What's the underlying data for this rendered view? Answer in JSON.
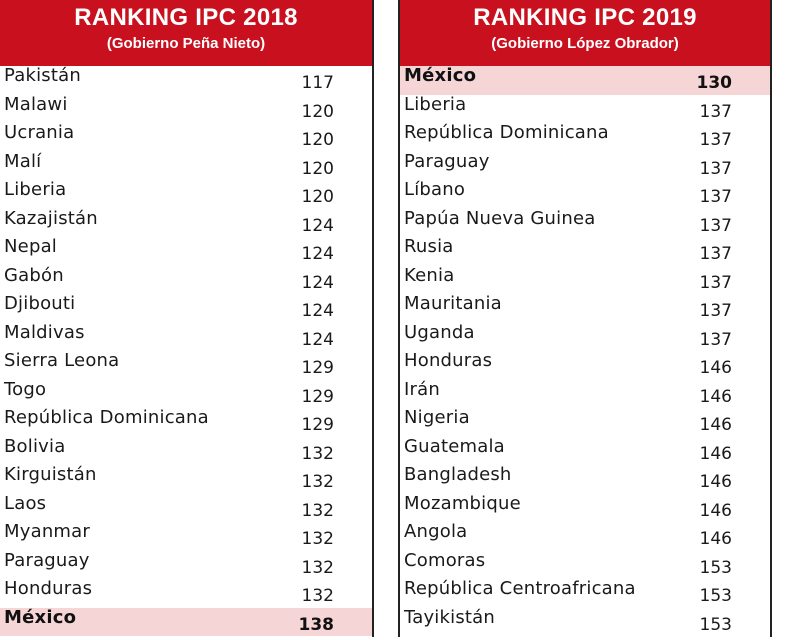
{
  "left": {
    "title": "RANKING IPC 2018",
    "subtitle": "(Gobierno Peña Nieto)",
    "rows": [
      {
        "country": "Pakistán",
        "rank": "117"
      },
      {
        "country": "Malawi",
        "rank": "120"
      },
      {
        "country": "Ucrania",
        "rank": "120"
      },
      {
        "country": "Malí",
        "rank": "120"
      },
      {
        "country": "Liberia",
        "rank": "120"
      },
      {
        "country": "Kazajistán",
        "rank": "124"
      },
      {
        "country": "Nepal",
        "rank": "124"
      },
      {
        "country": "Gabón",
        "rank": "124"
      },
      {
        "country": "Djibouti",
        "rank": "124"
      },
      {
        "country": "Maldivas",
        "rank": "124"
      },
      {
        "country": "Sierra Leona",
        "rank": "129"
      },
      {
        "country": "Togo",
        "rank": "129"
      },
      {
        "country": "República Dominicana",
        "rank": "129"
      },
      {
        "country": "Bolivia",
        "rank": "132"
      },
      {
        "country": "Kirguistán",
        "rank": "132"
      },
      {
        "country": "Laos",
        "rank": "132"
      },
      {
        "country": "Myanmar",
        "rank": "132"
      },
      {
        "country": "Paraguay",
        "rank": "132"
      },
      {
        "country": "Honduras",
        "rank": "132"
      },
      {
        "country": "México",
        "rank": "138",
        "highlight": true
      }
    ]
  },
  "right": {
    "title": "RANKING IPC 2019",
    "subtitle": "(Gobierno López Obrador)",
    "rows": [
      {
        "country": "México",
        "rank": "130",
        "highlight": true
      },
      {
        "country": "Liberia",
        "rank": "137"
      },
      {
        "country": "República Dominicana",
        "rank": "137"
      },
      {
        "country": "Paraguay",
        "rank": "137"
      },
      {
        "country": "Líbano",
        "rank": "137"
      },
      {
        "country": "Papúa Nueva Guinea",
        "rank": "137"
      },
      {
        "country": "Rusia",
        "rank": "137"
      },
      {
        "country": "Kenia",
        "rank": "137"
      },
      {
        "country": "Mauritania",
        "rank": "137"
      },
      {
        "country": "Uganda",
        "rank": "137"
      },
      {
        "country": "Honduras",
        "rank": "146"
      },
      {
        "country": "Irán",
        "rank": "146"
      },
      {
        "country": "Nigeria",
        "rank": "146"
      },
      {
        "country": "Guatemala",
        "rank": "146"
      },
      {
        "country": "Bangladesh",
        "rank": "146"
      },
      {
        "country": "Mozambique",
        "rank": "146"
      },
      {
        "country": "Angola",
        "rank": "146"
      },
      {
        "country": "Comoras",
        "rank": "153"
      },
      {
        "country": "República Centroafricana",
        "rank": "153"
      },
      {
        "country": "Tayikistán",
        "rank": "153"
      }
    ]
  },
  "colors": {
    "header_bg": "#c8101e",
    "header_text": "#ffffff",
    "highlight_row": "#f5d5d5"
  }
}
